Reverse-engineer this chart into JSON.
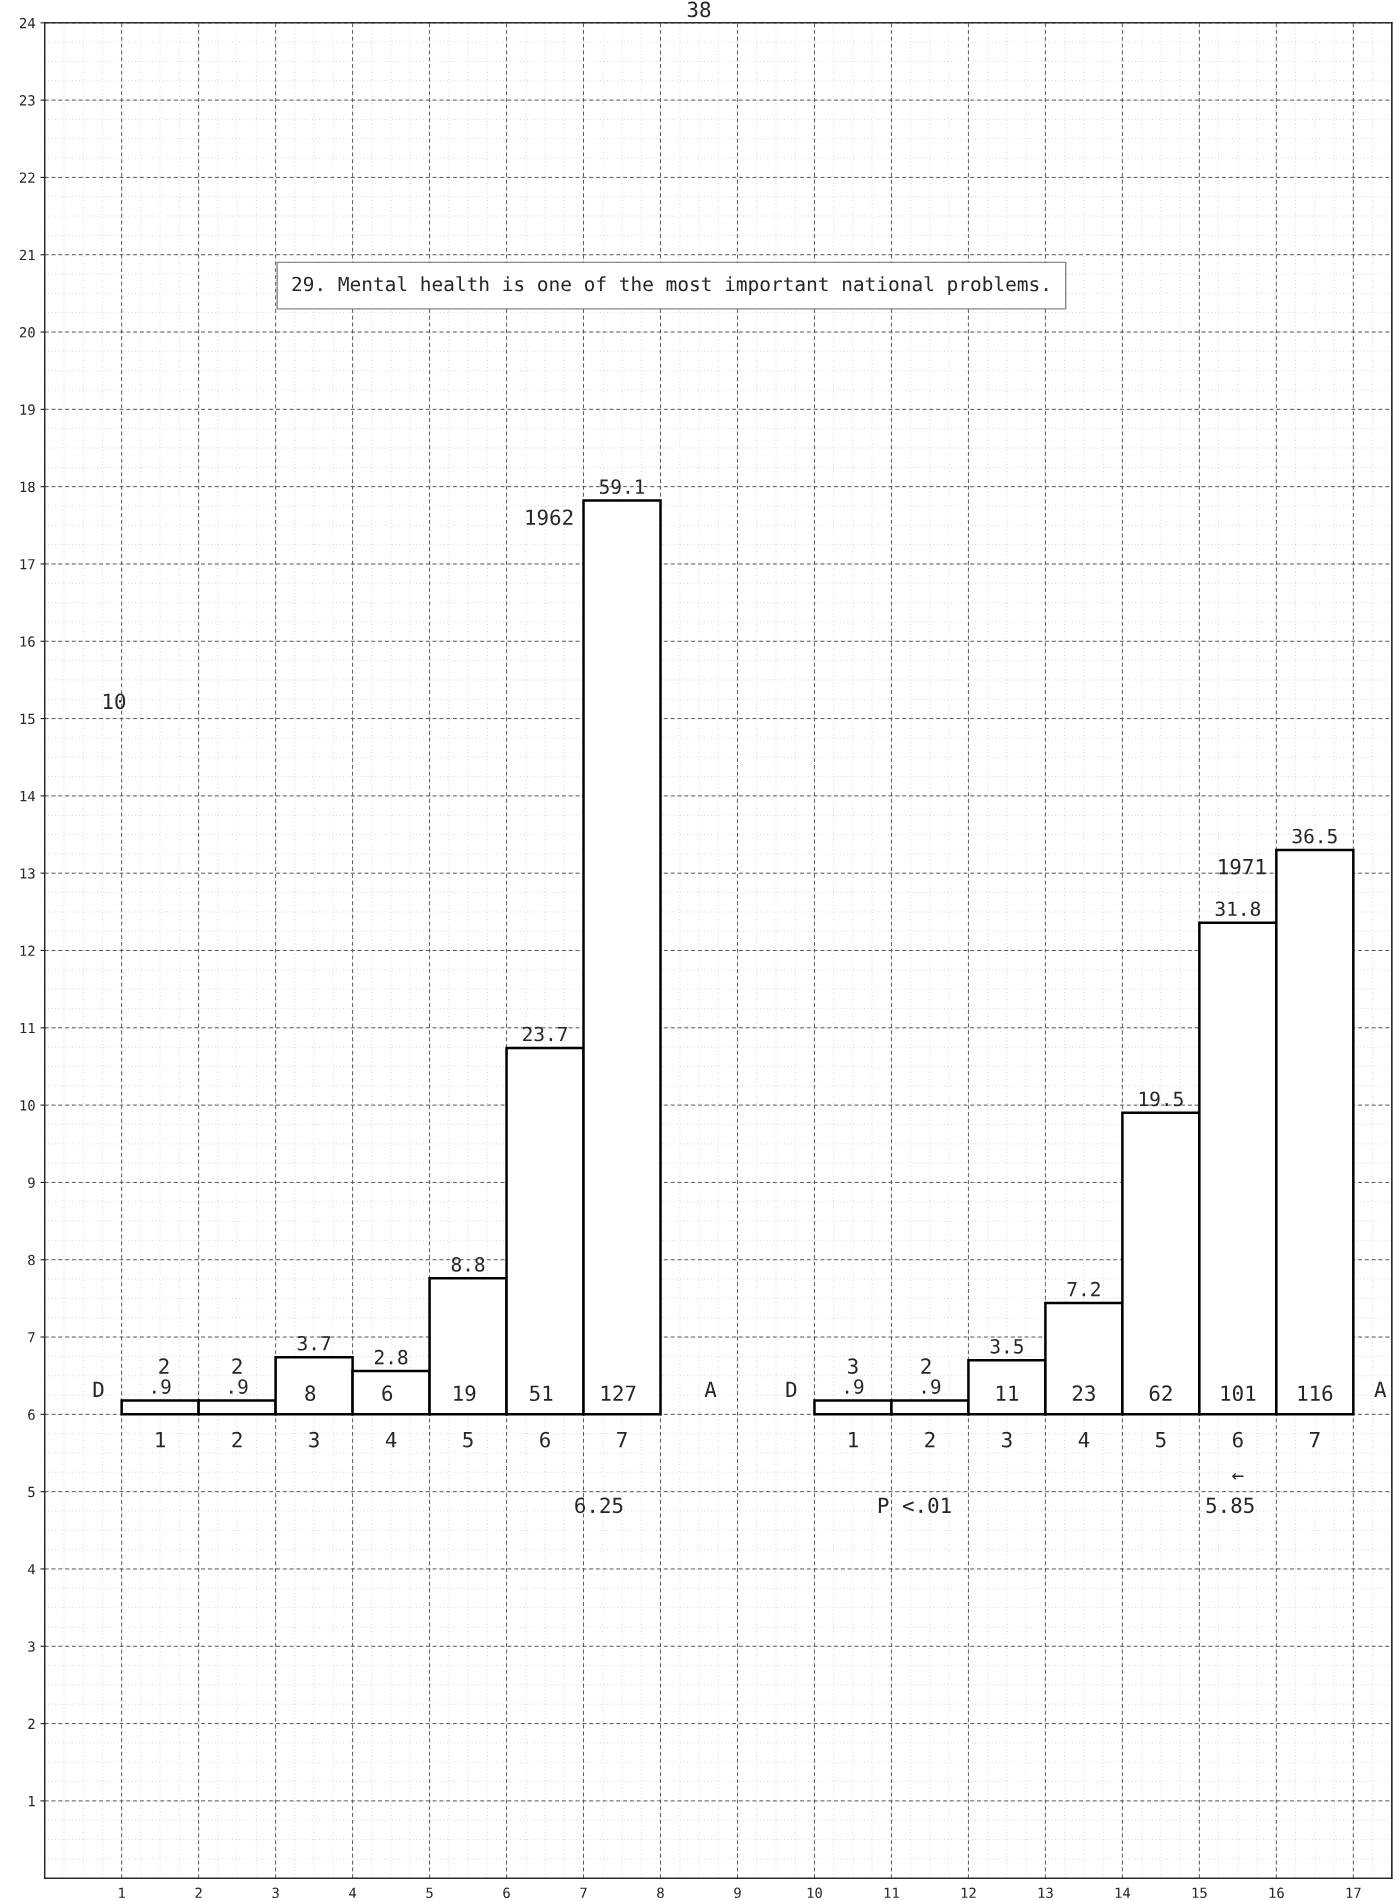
{
  "chart_data": {
    "type": "bar",
    "title": "29. Mental health is one of the most important national problems.",
    "xlim": [
      0,
      17.5
    ],
    "ylim": [
      0,
      24
    ],
    "xticks": [
      1,
      2,
      3,
      4,
      5,
      6,
      7,
      8,
      9,
      10,
      11,
      12,
      13,
      14,
      15,
      16,
      17
    ],
    "yticks": [
      1,
      2,
      3,
      4,
      5,
      6,
      7,
      8,
      9,
      10,
      11,
      12,
      13,
      14,
      15,
      16,
      17,
      18,
      19,
      20,
      21,
      22,
      23,
      24
    ],
    "grid": true,
    "series": [
      {
        "name": "1962",
        "color": "#000000",
        "axis": "y2",
        "x": [
          1.5,
          2.5,
          3.5,
          4.5,
          5.5,
          6.5,
          7.5
        ],
        "values": [
          0.9,
          0.9,
          3.7,
          2.8,
          8.8,
          23.7,
          59.1
        ],
        "value_labels": [
          ".9",
          ".9",
          "3.7",
          "2.8",
          "8.8",
          "23.7",
          "59.1"
        ]
      },
      {
        "name": "1971",
        "color": "#000000",
        "axis": "y2",
        "x": [
          10.5,
          11.5,
          12.5,
          13.5,
          14.5,
          15.5,
          16.5
        ],
        "values": [
          0.9,
          0.9,
          3.5,
          7.2,
          19.5,
          31.8,
          36.5
        ],
        "value_labels": [
          ".9",
          ".9",
          "3.5",
          "7.2",
          "19.5",
          "31.8",
          "36.5"
        ]
      }
    ],
    "annotations": [
      "38",
      "10",
      "D",
      "A",
      "D",
      "A",
      "1",
      "2",
      "3",
      "4",
      "5",
      "6",
      "7",
      "1",
      "2",
      "3",
      "4",
      "5",
      "6",
      "7",
      "2",
      "2",
      "8",
      "6",
      "19",
      "51",
      "127",
      "3",
      "2",
      "11",
      "23",
      "62",
      "101",
      "116",
      "6.25",
      "P <.01",
      "5.85",
      "←"
    ]
  }
}
